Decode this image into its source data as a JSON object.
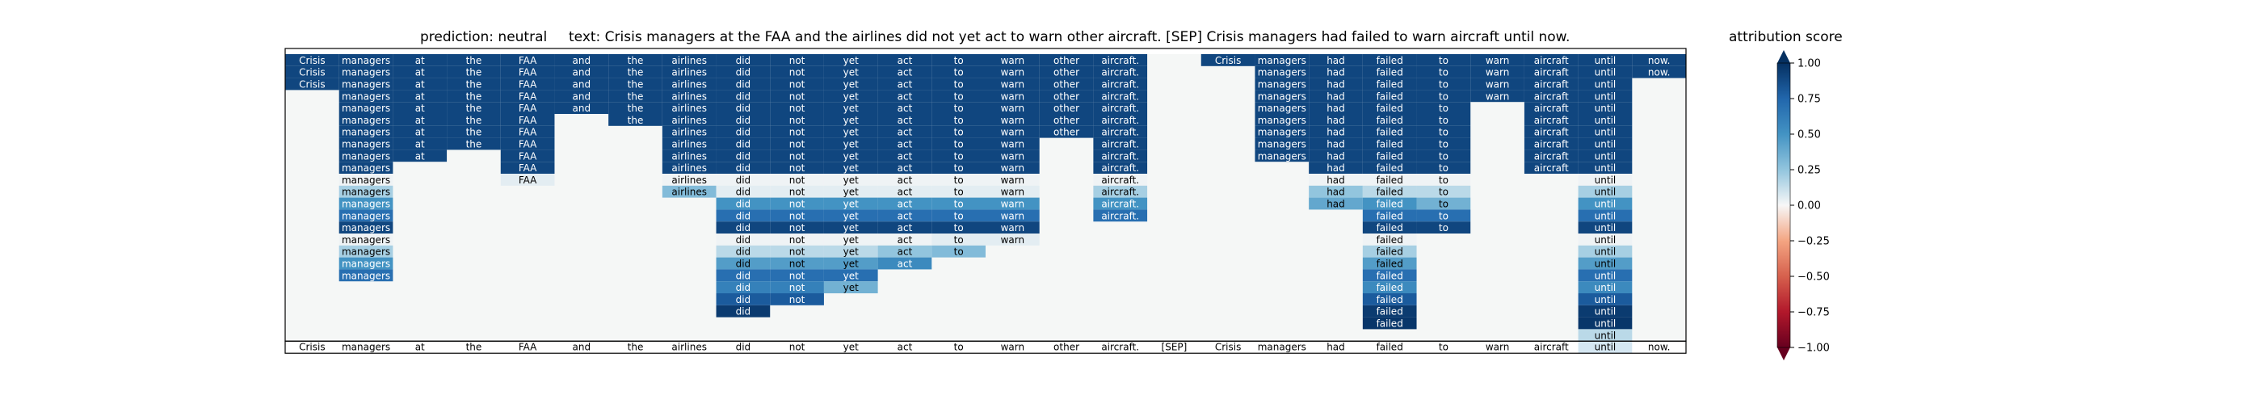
{
  "chart_data": {
    "type": "heatmap",
    "title_prediction": "prediction:  neutral",
    "title_text": "text:  Crisis managers at the FAA and the airlines did not yet act to warn other aircraft. [SEP] Crisis managers had failed to warn aircraft until now.",
    "colorbar_label": "attribution score",
    "colorbar_ticks": [
      "1.00",
      "0.75",
      "0.50",
      "0.25",
      "0.00",
      "−0.25",
      "−0.50",
      "−0.75",
      "−1.00"
    ],
    "vmin": -1.0,
    "vmax": 1.0,
    "colormap": "RdBu",
    "tokens": [
      "Crisis",
      "managers",
      "at",
      "the",
      "FAA",
      "and",
      "the",
      "airlines",
      "did",
      "not",
      "yet",
      "act",
      "to",
      "warn",
      "other",
      "aircraft.",
      "[SEP]",
      "Crisis",
      "managers",
      "had",
      "failed",
      "to",
      "warn",
      "aircraft",
      "until",
      "now."
    ],
    "rows": [
      [
        0.9,
        0.9,
        0.9,
        0.9,
        0.9,
        0.9,
        0.9,
        0.9,
        0.9,
        0.9,
        0.9,
        0.9,
        0.9,
        0.9,
        0.9,
        0.9,
        null,
        0.9,
        0.9,
        0.9,
        0.9,
        0.9,
        0.9,
        0.9,
        0.9,
        0.9
      ],
      [
        0.9,
        0.9,
        0.9,
        0.9,
        0.9,
        0.9,
        0.9,
        0.9,
        0.9,
        0.9,
        0.9,
        0.9,
        0.9,
        0.9,
        0.9,
        0.9,
        null,
        null,
        0.9,
        0.9,
        0.9,
        0.9,
        0.9,
        0.9,
        0.9,
        0.9
      ],
      [
        0.9,
        0.9,
        0.9,
        0.9,
        0.9,
        0.9,
        0.9,
        0.9,
        0.9,
        0.9,
        0.9,
        0.9,
        0.9,
        0.9,
        0.9,
        0.9,
        null,
        null,
        0.9,
        0.9,
        0.9,
        0.9,
        0.9,
        0.9,
        0.9,
        null
      ],
      [
        null,
        0.9,
        0.9,
        0.9,
        0.9,
        0.9,
        0.9,
        0.9,
        0.9,
        0.9,
        0.9,
        0.9,
        0.9,
        0.9,
        0.9,
        0.9,
        null,
        null,
        0.9,
        0.9,
        0.9,
        0.9,
        0.9,
        0.9,
        0.9,
        null
      ],
      [
        null,
        0.9,
        0.9,
        0.9,
        0.9,
        0.9,
        0.9,
        0.9,
        0.9,
        0.9,
        0.9,
        0.9,
        0.9,
        0.9,
        0.9,
        0.9,
        null,
        null,
        0.9,
        0.9,
        0.9,
        0.9,
        null,
        0.9,
        0.9,
        null
      ],
      [
        null,
        0.9,
        0.9,
        0.9,
        0.9,
        null,
        0.9,
        0.9,
        0.9,
        0.9,
        0.9,
        0.9,
        0.9,
        0.9,
        0.9,
        0.9,
        null,
        null,
        0.9,
        0.9,
        0.9,
        0.9,
        null,
        0.9,
        0.9,
        null
      ],
      [
        null,
        0.9,
        0.9,
        0.9,
        0.9,
        null,
        null,
        0.9,
        0.9,
        0.9,
        0.9,
        0.9,
        0.9,
        0.9,
        0.9,
        0.9,
        null,
        null,
        0.9,
        0.9,
        0.9,
        0.9,
        null,
        0.9,
        0.9,
        null
      ],
      [
        null,
        0.9,
        0.9,
        0.9,
        0.9,
        null,
        null,
        0.9,
        0.9,
        0.9,
        0.9,
        0.9,
        0.9,
        0.9,
        null,
        0.9,
        null,
        null,
        0.9,
        0.9,
        0.9,
        0.9,
        null,
        0.9,
        0.9,
        null
      ],
      [
        null,
        0.9,
        0.9,
        null,
        0.9,
        null,
        null,
        0.9,
        0.9,
        0.9,
        0.9,
        0.9,
        0.9,
        0.9,
        null,
        0.9,
        null,
        null,
        0.9,
        0.9,
        0.9,
        0.9,
        null,
        0.9,
        0.9,
        null
      ],
      [
        null,
        0.9,
        null,
        null,
        0.9,
        null,
        null,
        0.9,
        0.9,
        0.9,
        0.9,
        0.9,
        0.9,
        0.9,
        null,
        0.9,
        null,
        null,
        null,
        0.9,
        0.9,
        0.9,
        null,
        0.9,
        0.9,
        null
      ],
      [
        null,
        0.02,
        null,
        null,
        0.05,
        null,
        null,
        0.02,
        0.02,
        0.02,
        0.02,
        0.02,
        0.02,
        0.02,
        null,
        0.02,
        null,
        null,
        null,
        0.02,
        0.02,
        0.02,
        null,
        null,
        0.02,
        null
      ],
      [
        null,
        0.2,
        null,
        null,
        null,
        null,
        null,
        0.3,
        0.05,
        0.05,
        0.05,
        0.05,
        0.05,
        0.05,
        null,
        0.2,
        null,
        null,
        null,
        0.25,
        0.15,
        0.15,
        null,
        null,
        0.2,
        null
      ],
      [
        null,
        0.5,
        null,
        null,
        null,
        null,
        null,
        null,
        0.5,
        0.5,
        0.5,
        0.5,
        0.5,
        0.5,
        null,
        0.5,
        null,
        null,
        null,
        0.4,
        0.5,
        0.35,
        null,
        null,
        0.5,
        null
      ],
      [
        null,
        0.7,
        null,
        null,
        null,
        null,
        null,
        null,
        0.7,
        0.7,
        0.7,
        0.7,
        0.7,
        0.7,
        null,
        0.7,
        null,
        null,
        null,
        null,
        0.7,
        0.7,
        null,
        null,
        0.7,
        null
      ],
      [
        null,
        0.9,
        null,
        null,
        null,
        null,
        null,
        null,
        0.9,
        0.9,
        0.9,
        0.9,
        0.9,
        0.9,
        null,
        null,
        null,
        null,
        null,
        null,
        0.9,
        0.9,
        null,
        null,
        0.9,
        null
      ],
      [
        null,
        0.02,
        null,
        null,
        null,
        null,
        null,
        null,
        0.02,
        0.02,
        0.02,
        0.02,
        0.05,
        0.05,
        null,
        null,
        null,
        null,
        null,
        null,
        0.02,
        null,
        null,
        null,
        0.02,
        null
      ],
      [
        null,
        0.2,
        null,
        null,
        null,
        null,
        null,
        null,
        0.15,
        0.15,
        0.15,
        0.25,
        0.3,
        null,
        null,
        null,
        null,
        null,
        null,
        null,
        0.2,
        null,
        null,
        null,
        0.2,
        null
      ],
      [
        null,
        0.5,
        null,
        null,
        null,
        null,
        null,
        null,
        0.45,
        0.45,
        0.45,
        0.55,
        null,
        null,
        null,
        null,
        null,
        null,
        null,
        null,
        0.45,
        null,
        null,
        null,
        0.45,
        null
      ],
      [
        null,
        0.7,
        null,
        null,
        null,
        null,
        null,
        null,
        0.7,
        0.7,
        0.7,
        null,
        null,
        null,
        null,
        null,
        null,
        null,
        null,
        null,
        0.7,
        null,
        null,
        null,
        0.7,
        null
      ],
      [
        null,
        null,
        null,
        null,
        null,
        null,
        null,
        null,
        0.6,
        0.6,
        0.35,
        null,
        null,
        null,
        null,
        null,
        null,
        null,
        null,
        null,
        0.55,
        null,
        null,
        null,
        0.55,
        null
      ],
      [
        null,
        null,
        null,
        null,
        null,
        null,
        null,
        null,
        0.8,
        0.8,
        null,
        null,
        null,
        null,
        null,
        null,
        null,
        null,
        null,
        null,
        0.8,
        null,
        null,
        null,
        0.8,
        null
      ],
      [
        null,
        null,
        null,
        null,
        null,
        null,
        null,
        null,
        0.95,
        null,
        null,
        null,
        null,
        null,
        null,
        null,
        null,
        null,
        null,
        null,
        0.95,
        null,
        null,
        null,
        0.95,
        null
      ],
      [
        null,
        null,
        null,
        null,
        null,
        null,
        null,
        null,
        null,
        null,
        null,
        null,
        null,
        null,
        null,
        null,
        null,
        null,
        null,
        null,
        0.97,
        null,
        null,
        null,
        0.97,
        null
      ],
      [
        null,
        null,
        null,
        null,
        null,
        null,
        null,
        null,
        null,
        null,
        null,
        null,
        null,
        null,
        null,
        null,
        null,
        null,
        null,
        null,
        null,
        null,
        null,
        null,
        0.15,
        null
      ]
    ]
  }
}
